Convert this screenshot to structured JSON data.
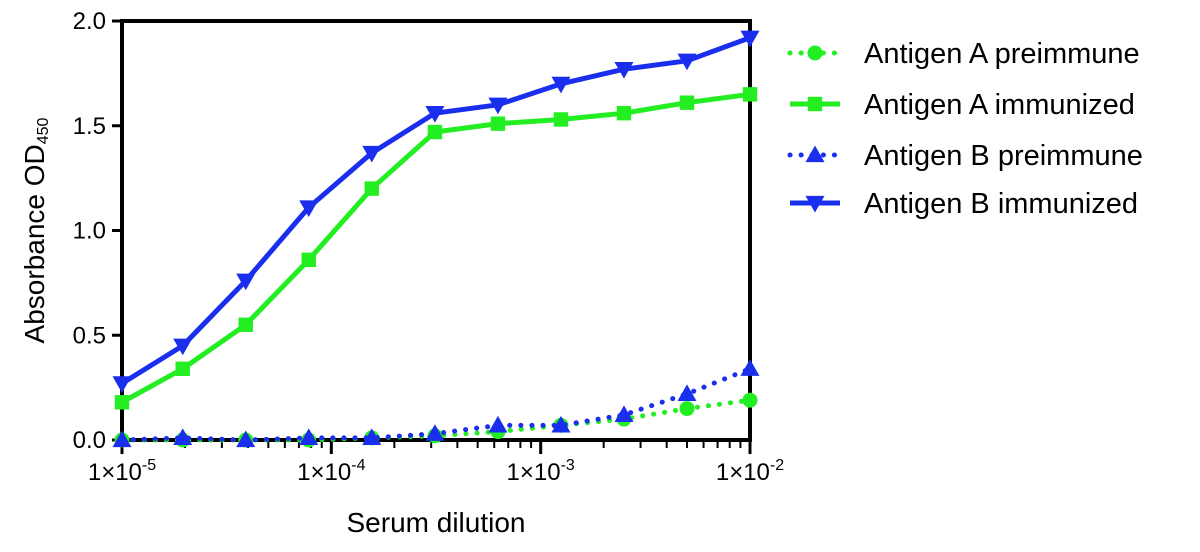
{
  "chart_data": {
    "type": "line",
    "xscale": "log",
    "xlim": [
      1e-05,
      0.01
    ],
    "ylim": [
      0,
      2.0
    ],
    "xlabel": "Serum dilution",
    "ylabel_main": "Absorbance OD",
    "ylabel_sub": "450",
    "x_ticks": [
      {
        "value": 1e-05,
        "base": "1×10",
        "exp": "-5"
      },
      {
        "value": 0.0001,
        "base": "1×10",
        "exp": "-4"
      },
      {
        "value": 0.001,
        "base": "1×10",
        "exp": "-3"
      },
      {
        "value": 0.01,
        "base": "1×10",
        "exp": "-2"
      }
    ],
    "y_ticks": [
      {
        "value": 0.0,
        "label": "0.0"
      },
      {
        "value": 0.5,
        "label": "0.5"
      },
      {
        "value": 1.0,
        "label": "1.0"
      },
      {
        "value": 1.5,
        "label": "1.5"
      },
      {
        "value": 2.0,
        "label": "2.0"
      }
    ],
    "x": [
      1e-05,
      1.95e-05,
      3.9e-05,
      7.8e-05,
      0.000156,
      0.0003125,
      0.000625,
      0.00125,
      0.0025,
      0.005,
      0.01
    ],
    "series": [
      {
        "name": "Antigen A preimmune",
        "color": "#22ee22",
        "dash": "dotted",
        "marker": "circle",
        "values": [
          0.0,
          0.0,
          0.0,
          0.0,
          0.01,
          0.02,
          0.04,
          0.07,
          0.1,
          0.15,
          0.19
        ]
      },
      {
        "name": "Antigen A immunized",
        "color": "#22ee22",
        "dash": "solid",
        "marker": "square",
        "values": [
          0.18,
          0.34,
          0.55,
          0.86,
          1.2,
          1.47,
          1.51,
          1.53,
          1.56,
          1.61,
          1.65
        ]
      },
      {
        "name": "Antigen B preimmune",
        "color": "#1a2eee",
        "dash": "dotted",
        "marker": "triangle-up",
        "values": [
          0.0,
          0.01,
          0.0,
          0.01,
          0.01,
          0.03,
          0.07,
          0.07,
          0.12,
          0.22,
          0.34
        ]
      },
      {
        "name": "Antigen B immunized",
        "color": "#1a2eee",
        "dash": "solid",
        "marker": "triangle-down",
        "values": [
          0.27,
          0.45,
          0.76,
          1.11,
          1.37,
          1.56,
          1.6,
          1.7,
          1.77,
          1.81,
          1.92
        ]
      }
    ],
    "legend_position": "right"
  }
}
